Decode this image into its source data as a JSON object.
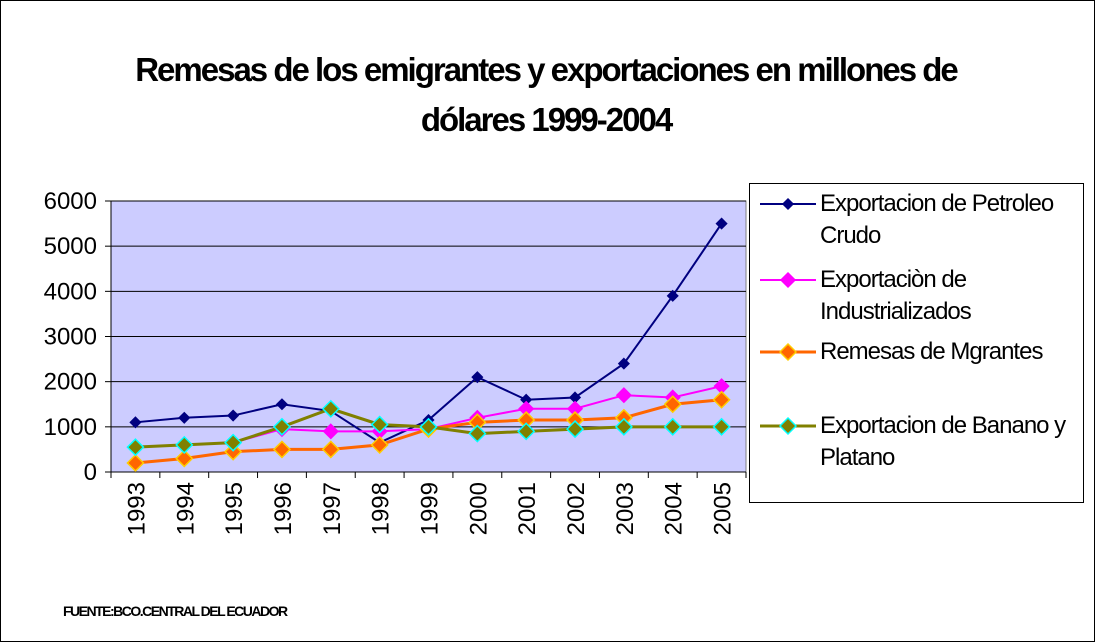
{
  "chart_data": {
    "type": "line",
    "title": "Remesas de los emigrantes y exportaciones en millones de dólares 1999-2004",
    "source": "FUENTE:BCO.CENTRAL DEL ECUADOR",
    "categories": [
      "1993",
      "1994",
      "1995",
      "1996",
      "1997",
      "1998",
      "1999",
      "2000",
      "2001",
      "2002",
      "2003",
      "2004",
      "2005"
    ],
    "series": [
      {
        "name": "Exportacion de Petroleo Crudo",
        "color": "#000080",
        "values": [
          1100,
          1200,
          1250,
          1500,
          1350,
          650,
          1150,
          2100,
          1600,
          1650,
          2400,
          3900,
          5500
        ]
      },
      {
        "name": "Exportaciòn de Industrializados",
        "color": "#ff00ff",
        "values": [
          550,
          600,
          650,
          950,
          900,
          900,
          950,
          1200,
          1400,
          1400,
          1700,
          1650,
          1900
        ]
      },
      {
        "name": "Remesas de Mgrantes",
        "color": "#ff6600",
        "values": [
          200,
          300,
          450,
          500,
          500,
          600,
          950,
          1100,
          1150,
          1150,
          1200,
          1500,
          1600
        ]
      },
      {
        "name": "Exportacion de Banano y Platano",
        "color": "#808000",
        "values": [
          550,
          600,
          650,
          1000,
          1400,
          1050,
          1000,
          850,
          900,
          950,
          1000,
          1000,
          1000
        ]
      }
    ],
    "ylim": [
      0,
      6000
    ],
    "yticks": [
      0,
      1000,
      2000,
      3000,
      4000,
      5000,
      6000
    ],
    "grid": true,
    "legend": "right"
  }
}
